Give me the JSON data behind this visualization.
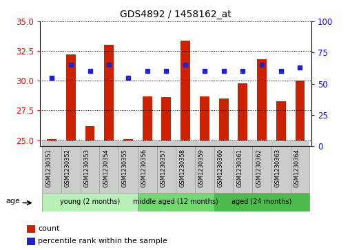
{
  "title": "GDS4892 / 1458162_at",
  "samples": [
    "GSM1230351",
    "GSM1230352",
    "GSM1230353",
    "GSM1230354",
    "GSM1230355",
    "GSM1230356",
    "GSM1230357",
    "GSM1230358",
    "GSM1230359",
    "GSM1230360",
    "GSM1230361",
    "GSM1230362",
    "GSM1230363",
    "GSM1230364"
  ],
  "count_values": [
    25.1,
    32.2,
    26.2,
    33.0,
    25.1,
    28.7,
    28.6,
    33.4,
    28.7,
    28.5,
    29.8,
    31.8,
    28.3,
    30.0
  ],
  "percentile_values": [
    55,
    65,
    60,
    65,
    55,
    60,
    60,
    65,
    60,
    60,
    60,
    65,
    60,
    63
  ],
  "ylim_left": [
    24.5,
    35
  ],
  "ylim_right": [
    0,
    100
  ],
  "yticks_left": [
    25,
    27.5,
    30,
    32.5,
    35
  ],
  "yticks_right": [
    0,
    25,
    50,
    75,
    100
  ],
  "bar_color": "#cc2200",
  "dot_color": "#2222cc",
  "groups": [
    {
      "label": "young (2 months)",
      "start": 0,
      "end": 5
    },
    {
      "label": "middle aged (12 months)",
      "start": 5,
      "end": 9
    },
    {
      "label": "aged (24 months)",
      "start": 9,
      "end": 14
    }
  ],
  "group_colors": [
    "#b8f0b8",
    "#72d972",
    "#4cba4c"
  ],
  "age_label": "age",
  "legend_count": "count",
  "legend_percentile": "percentile rank within the sample",
  "bg_color": "#ffffff",
  "bar_bottom": 25.0,
  "sample_box_color": "#cccccc",
  "sample_box_edge": "#999999"
}
